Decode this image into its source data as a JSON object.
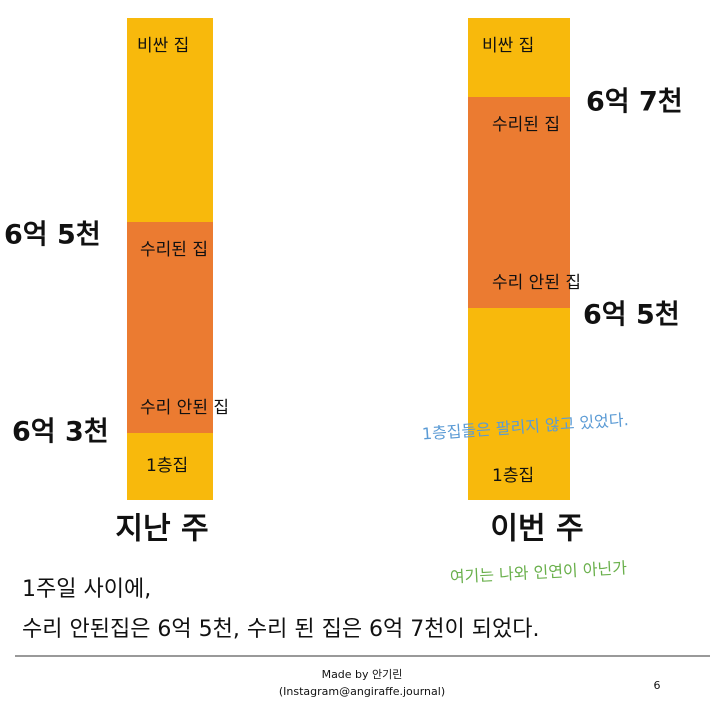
{
  "columns": [
    {
      "title": "지난 주",
      "segments": [
        "비싼 집",
        "수리된 집",
        "수리 안된 집",
        "1층집"
      ],
      "prices": [
        "6억 5천",
        "6억 3천"
      ]
    },
    {
      "title": "이번 주",
      "segments": [
        "비싼 집",
        "수리된 집",
        "수리 안된 집",
        "1층집"
      ],
      "prices": [
        "6억 7천",
        "6억 5천"
      ]
    }
  ],
  "note": "1층집들은 팔리지 않고 있었다.",
  "aside": "여기는 나와 인연이 아닌가",
  "summary": [
    "1주일 사이에,",
    "수리 안된집은 6억 5천, 수리 된 집은 6억 7천이 되었다."
  ],
  "footer": {
    "credit": [
      "Made by 안기린",
      "(Instagram@angiraffe.journal)"
    ],
    "page": "6"
  }
}
